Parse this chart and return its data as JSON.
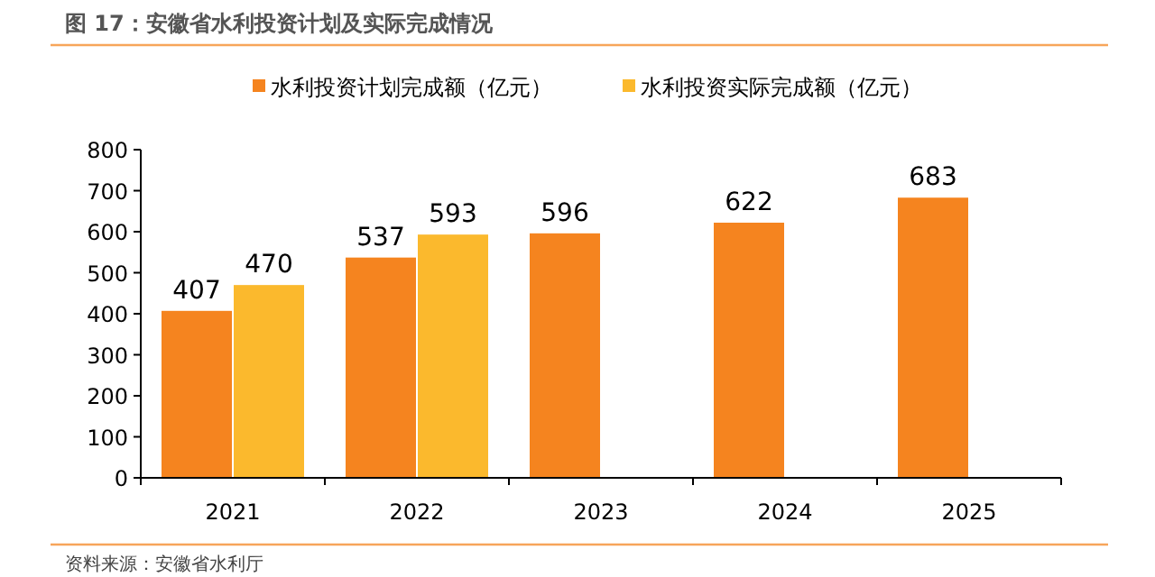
{
  "chart_data": {
    "type": "bar",
    "title": "图 17：安徽省水利投资计划及实际完成情况",
    "categories": [
      "2021",
      "2022",
      "2023",
      "2024",
      "2025"
    ],
    "series": [
      {
        "name": "水利投资计划完成额（亿元）",
        "color": "#f5841f",
        "values": [
          407,
          537,
          596,
          622,
          683
        ]
      },
      {
        "name": "水利投资实际完成额（亿元）",
        "color": "#fbb92d",
        "values": [
          470,
          593,
          null,
          null,
          null
        ]
      }
    ],
    "ylim": [
      0,
      800
    ],
    "yticks": [
      0,
      100,
      200,
      300,
      400,
      500,
      600,
      700,
      800
    ],
    "data_labels": true,
    "legend": "top",
    "grid": false,
    "annotations": [
      "资料来源：安徽省水利厅"
    ]
  }
}
